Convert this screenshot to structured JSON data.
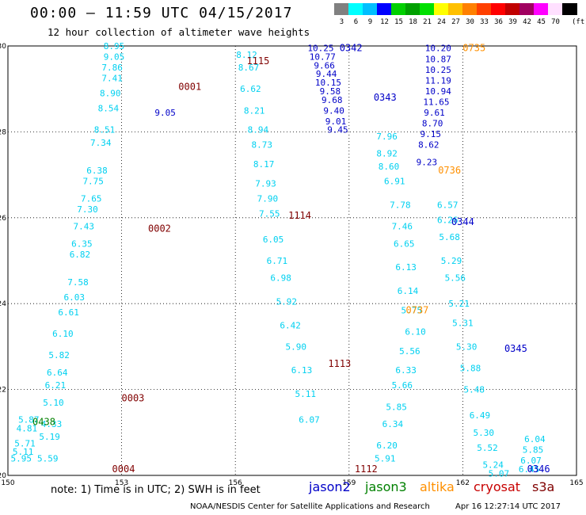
{
  "header": {
    "title": "00:00 – 11:59 UTC 04/15/2017",
    "subtitle": "12 hour collection of altimeter wave heights"
  },
  "legend": {
    "unit": "(ft)",
    "bins": [
      {
        "label": "3",
        "color": "#808080"
      },
      {
        "label": "6",
        "color": "#00ffff"
      },
      {
        "label": "9",
        "color": "#00bfff"
      },
      {
        "label": "12",
        "color": "#0000ff"
      },
      {
        "label": "15",
        "color": "#00d000"
      },
      {
        "label": "18",
        "color": "#00a000"
      },
      {
        "label": "21",
        "color": "#00e000"
      },
      {
        "label": "24",
        "color": "#ffff00"
      },
      {
        "label": "27",
        "color": "#ffc000"
      },
      {
        "label": "30",
        "color": "#ff8000"
      },
      {
        "label": "33",
        "color": "#ff4000"
      },
      {
        "label": "36",
        "color": "#ff0000"
      },
      {
        "label": "39",
        "color": "#c00000"
      },
      {
        "label": "42",
        "color": "#a00060"
      },
      {
        "label": "45",
        "color": "#ff00ff"
      },
      {
        "label": "70",
        "color": "#ffe0ff"
      },
      {
        "label": "",
        "color": "#000000"
      }
    ]
  },
  "axes": {
    "lat_labels": [
      "30",
      "28",
      "26",
      "24",
      "22",
      "20"
    ],
    "lon_labels": [
      "150",
      "153",
      "156",
      "159",
      "162",
      "165"
    ],
    "lat_min": 20,
    "lat_max": 30,
    "lon_min": 150,
    "lon_max": 165
  },
  "tracks": [
    {
      "color": "#00d0f0",
      "points": [
        [
          152.8,
          30,
          "8.95"
        ],
        [
          152.8,
          29.75,
          "9.05"
        ],
        [
          152.75,
          29.5,
          "7.86"
        ],
        [
          152.75,
          29.25,
          "7.41"
        ],
        [
          152.7,
          28.9,
          "8.90"
        ],
        [
          152.65,
          28.55,
          "8.54"
        ],
        [
          152.55,
          28.05,
          "8.51"
        ],
        [
          152.45,
          27.75,
          "7.34"
        ],
        [
          152.35,
          27.1,
          "6.38"
        ],
        [
          152.25,
          26.85,
          "7.75"
        ],
        [
          152.2,
          26.45,
          "7.65"
        ],
        [
          152.1,
          26.2,
          "7.30"
        ],
        [
          152,
          25.8,
          "7.43"
        ],
        [
          151.95,
          25.4,
          "6.35"
        ],
        [
          151.9,
          25.15,
          "6.82"
        ],
        [
          151.85,
          24.5,
          "7.58"
        ],
        [
          151.75,
          24.15,
          "6.03"
        ],
        [
          151.6,
          23.8,
          "6.61"
        ],
        [
          151.45,
          23.3,
          "6.10"
        ],
        [
          151.35,
          22.8,
          "5.82"
        ],
        [
          151.3,
          22.4,
          "6.64"
        ],
        [
          151.25,
          22.1,
          "6.21"
        ],
        [
          151.2,
          21.7,
          "5.10"
        ],
        [
          151.15,
          21.2,
          "4.33"
        ],
        [
          151.1,
          20.9,
          "5.19"
        ],
        [
          151.05,
          20.4,
          "5.59"
        ]
      ]
    },
    {
      "color": "#00d0f0",
      "points": [
        [
          150.55,
          21.3,
          "5.87"
        ],
        [
          150.5,
          21.1,
          "4.81"
        ],
        [
          150.45,
          20.75,
          "5.71"
        ],
        [
          150.4,
          20.55,
          "5.11"
        ],
        [
          150.35,
          20.4,
          "5.95"
        ]
      ]
    },
    {
      "color": "#00d0f0",
      "points": [
        [
          156.3,
          29.8,
          "8.12"
        ],
        [
          156.35,
          29.5,
          "8.67"
        ],
        [
          156.4,
          29.0,
          "6.62"
        ],
        [
          156.5,
          28.5,
          "8.21"
        ],
        [
          156.6,
          28.05,
          "8.94"
        ],
        [
          156.7,
          27.7,
          "8.73"
        ],
        [
          156.75,
          27.25,
          "8.17"
        ],
        [
          156.8,
          26.8,
          "7.93"
        ],
        [
          156.85,
          26.45,
          "7.90"
        ],
        [
          156.9,
          26.1,
          "7.55"
        ],
        [
          157.0,
          25.5,
          "6.05"
        ],
        [
          157.1,
          25.0,
          "6.71"
        ],
        [
          157.2,
          24.6,
          "6.98"
        ],
        [
          157.35,
          24.05,
          "5.92"
        ],
        [
          157.45,
          23.5,
          "6.42"
        ],
        [
          157.6,
          23.0,
          "5.90"
        ],
        [
          157.75,
          22.45,
          "6.13"
        ],
        [
          157.85,
          21.9,
          "5.11"
        ],
        [
          157.95,
          21.3,
          "6.07"
        ]
      ]
    },
    {
      "color": "#00d0f0",
      "points": [
        [
          160.0,
          27.9,
          "7.96"
        ],
        [
          160.0,
          27.5,
          "8.92"
        ],
        [
          160.05,
          27.2,
          "8.60"
        ],
        [
          160.2,
          26.85,
          "6.91"
        ],
        [
          160.35,
          26.3,
          "7.78"
        ],
        [
          160.4,
          25.8,
          "7.46"
        ],
        [
          160.45,
          25.4,
          "6.65"
        ],
        [
          160.5,
          24.85,
          "6.13"
        ],
        [
          160.55,
          24.3,
          "6.14"
        ],
        [
          160.65,
          23.85,
          "5.75"
        ],
        [
          160.75,
          23.35,
          "6.10"
        ],
        [
          160.6,
          22.9,
          "5.56"
        ],
        [
          160.5,
          22.45,
          "6.33"
        ],
        [
          160.4,
          22.1,
          "5.66"
        ],
        [
          160.25,
          21.6,
          "5.85"
        ],
        [
          160.15,
          21.2,
          "6.34"
        ],
        [
          160.0,
          20.7,
          "6.20"
        ],
        [
          159.95,
          20.4,
          "5.91"
        ]
      ]
    },
    {
      "color": "#00d0f0",
      "points": [
        [
          161.6,
          26.3,
          "6.57"
        ],
        [
          161.6,
          25.95,
          "6.26"
        ],
        [
          161.65,
          25.55,
          "5.68"
        ],
        [
          161.7,
          25.0,
          "5.29"
        ],
        [
          161.8,
          24.6,
          "5.56"
        ],
        [
          161.9,
          24.0,
          "5.21"
        ],
        [
          162.0,
          23.55,
          "5.31"
        ],
        [
          162.1,
          23.0,
          "5.30"
        ],
        [
          162.2,
          22.5,
          "5.88"
        ],
        [
          162.3,
          22.0,
          "5.48"
        ],
        [
          162.45,
          21.4,
          "6.49"
        ],
        [
          162.55,
          21.0,
          "5.30"
        ],
        [
          162.65,
          20.65,
          "5.52"
        ],
        [
          162.8,
          20.25,
          "5.24"
        ],
        [
          162.95,
          20.05,
          "5.07"
        ]
      ]
    },
    {
      "color": "#00d0f0",
      "points": [
        [
          163.9,
          20.85,
          "6.04"
        ],
        [
          163.85,
          20.6,
          "5.85"
        ],
        [
          163.8,
          20.35,
          "6.07"
        ],
        [
          163.75,
          20.15,
          "6.45"
        ]
      ]
    },
    {
      "color": "#0000c8",
      "points": [
        [
          158.25,
          29.95,
          "10.25"
        ],
        [
          158.3,
          29.75,
          "10.77"
        ],
        [
          158.35,
          29.55,
          "9.66"
        ],
        [
          158.4,
          29.35,
          "9.44"
        ],
        [
          158.45,
          29.15,
          "10.15"
        ],
        [
          158.5,
          28.95,
          "9.58"
        ],
        [
          158.55,
          28.75,
          "9.68"
        ],
        [
          158.6,
          28.5,
          "9.40"
        ],
        [
          158.65,
          28.25,
          "9.01"
        ],
        [
          158.7,
          28.05,
          "9.45"
        ],
        [
          161.35,
          29.95,
          "10.20"
        ],
        [
          161.35,
          29.7,
          "10.87"
        ],
        [
          161.35,
          29.45,
          "10.25"
        ],
        [
          161.35,
          29.2,
          "11.19"
        ],
        [
          161.35,
          28.95,
          "10.94"
        ],
        [
          161.3,
          28.7,
          "11.65"
        ],
        [
          161.25,
          28.45,
          "9.61"
        ],
        [
          161.2,
          28.2,
          "8.70"
        ],
        [
          161.15,
          27.95,
          "9.15"
        ],
        [
          161.1,
          27.7,
          "8.62"
        ],
        [
          161.05,
          27.3,
          "9.23"
        ],
        [
          154.15,
          28.45,
          "9.05"
        ]
      ]
    }
  ],
  "pass_labels": [
    {
      "text": "0001",
      "color": "#800000",
      "lon": 154.8,
      "lat": 29.05
    },
    {
      "text": "0002",
      "color": "#800000",
      "lon": 154.0,
      "lat": 25.75
    },
    {
      "text": "0003",
      "color": "#800000",
      "lon": 153.3,
      "lat": 21.8
    },
    {
      "text": "0004",
      "color": "#800000",
      "lon": 153.05,
      "lat": 20.15
    },
    {
      "text": "0438",
      "color": "#008000",
      "lon": 150.95,
      "lat": 21.25
    },
    {
      "text": "1115",
      "color": "#800000",
      "lon": 156.6,
      "lat": 29.65
    },
    {
      "text": "1114",
      "color": "#800000",
      "lon": 157.7,
      "lat": 26.05
    },
    {
      "text": "1113",
      "color": "#800000",
      "lon": 158.75,
      "lat": 22.6
    },
    {
      "text": "1112",
      "color": "#800000",
      "lon": 159.45,
      "lat": 20.15
    },
    {
      "text": "0342",
      "color": "#0000c8",
      "lon": 159.05,
      "lat": 29.95
    },
    {
      "text": "0343",
      "color": "#0000c8",
      "lon": 159.95,
      "lat": 28.8
    },
    {
      "text": "0344",
      "color": "#0000c8",
      "lon": 162.0,
      "lat": 25.9
    },
    {
      "text": "0345",
      "color": "#0000c8",
      "lon": 163.4,
      "lat": 22.95
    },
    {
      "text": "0346",
      "color": "#0000c8",
      "lon": 164.0,
      "lat": 20.15
    },
    {
      "text": "0735",
      "color": "#ff9000",
      "lon": 162.3,
      "lat": 29.95
    },
    {
      "text": "0736",
      "color": "#ff9000",
      "lon": 161.65,
      "lat": 27.1
    },
    {
      "text": "0737",
      "color": "#ff9000",
      "lon": 160.8,
      "lat": 23.85
    }
  ],
  "footer": {
    "note": "note: 1) Time is in UTC; 2) SWH is in feet",
    "satellites": [
      {
        "name": "jason2",
        "color": "#0000c8"
      },
      {
        "name": "jason3",
        "color": "#008000"
      },
      {
        "name": "altika",
        "color": "#ff9000"
      },
      {
        "name": "cryosat",
        "color": "#c80000"
      },
      {
        "name": "s3a",
        "color": "#800000"
      }
    ],
    "credit": "NOAA/NESDIS Center for Satellite Applications and Research",
    "timestamp": "Apr 16 12:27:14 UTC 2017"
  }
}
